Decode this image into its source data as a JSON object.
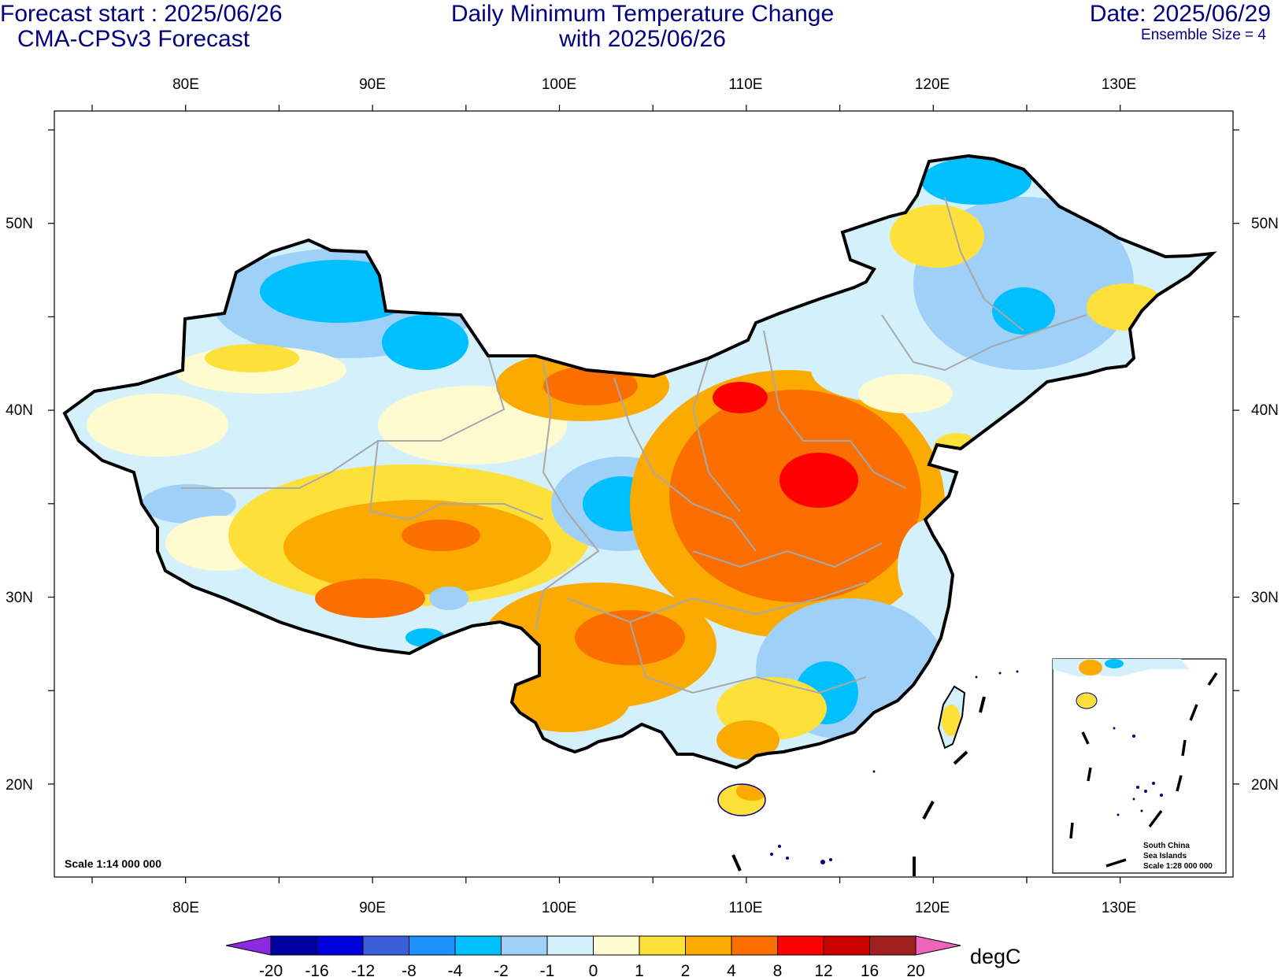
{
  "header": {
    "forecast_start": "Forecast start : 2025/06/26",
    "model": "CMA-CPSv3 Forecast",
    "title_line1": "Daily Minimum Temperature Change",
    "title_line2": "with 2025/06/26",
    "date": "Date: 2025/06/29",
    "ensemble": "Ensemble Size = 4"
  },
  "axes": {
    "lon_labels": [
      "80E",
      "90E",
      "100E",
      "110E",
      "120E",
      "130E"
    ],
    "lat_labels": [
      "50N",
      "40N",
      "30N",
      "20N"
    ]
  },
  "map": {
    "scale": "Scale 1:14 000 000",
    "inset_line1": "South China",
    "inset_line2": "Sea Islands",
    "inset_line3": "Scale 1:28 000 000"
  },
  "colorbar": {
    "unit": "degC",
    "labels": [
      "-20",
      "-16",
      "-12",
      "-8",
      "-4",
      "-2",
      "-1",
      "0",
      "1",
      "2",
      "4",
      "8",
      "12",
      "16",
      "20"
    ],
    "colors": [
      "#0000a0",
      "#0000dd",
      "#3b5fdc",
      "#1e90ff",
      "#00bfff",
      "#9fd0f7",
      "#d3f0fb",
      "#fffbd0",
      "#fde03a",
      "#fbaa00",
      "#fb6e00",
      "#ff0000",
      "#cc0000",
      "#a02020"
    ],
    "low_color": "#8a2be2",
    "high_color": "#ee66bb"
  }
}
